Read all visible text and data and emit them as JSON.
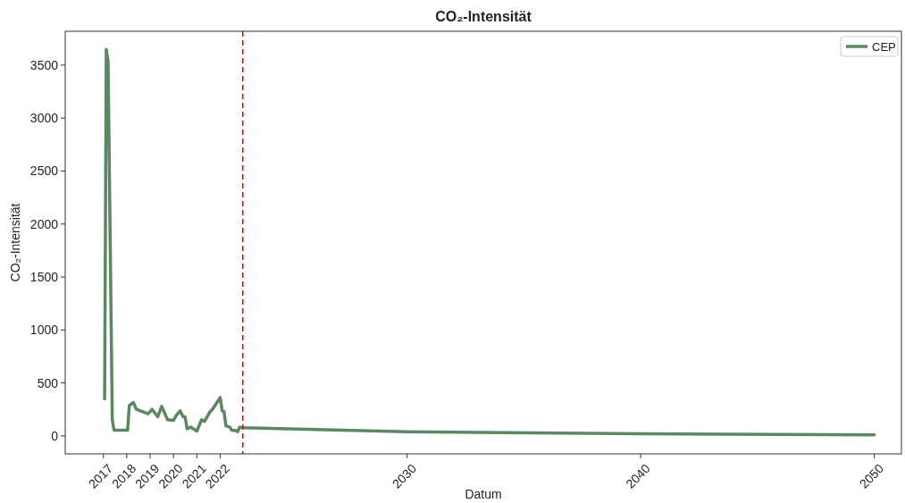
{
  "chart_data": {
    "type": "line",
    "title": "CO₂-Intensität",
    "xlabel": "Datum",
    "ylabel": "CO₂-Intensität",
    "xlim": [
      "2015-05-15",
      "2051-03-01"
    ],
    "xticks": [
      {
        "value": "2017",
        "label": "2017"
      },
      {
        "value": "2018",
        "label": "2018"
      },
      {
        "value": "2019",
        "label": "2019"
      },
      {
        "value": "2020",
        "label": "2020"
      },
      {
        "value": "2021",
        "label": "2021"
      },
      {
        "value": "2022",
        "label": "2022"
      },
      {
        "value": "2030",
        "label": "2030"
      },
      {
        "value": "2040",
        "label": "2040"
      },
      {
        "value": "2050",
        "label": "2050"
      }
    ],
    "ylim": [
      -170,
      3820
    ],
    "yticks": [
      0,
      500,
      1000,
      1500,
      2000,
      2500,
      3000,
      3500
    ],
    "grid": false,
    "legend": "top right",
    "marker": "none",
    "line_style": "solid",
    "series": [
      {
        "name": "CEP",
        "color": "#5b8763",
        "x": [
          "2017-01-20",
          "2017-02-15",
          "2017-03-15",
          "2017-05-20",
          "2017-06-15",
          "2018-01-15",
          "2018-02-10",
          "2018-04-15",
          "2018-06-01",
          "2018-12-01",
          "2019-02-01",
          "2019-05-01",
          "2019-07-01",
          "2019-10-01",
          "2020-01-01",
          "2020-02-15",
          "2020-04-15",
          "2020-06-01",
          "2020-07-01",
          "2020-08-01",
          "2020-10-01",
          "2021-01-01",
          "2021-03-15",
          "2021-05-01",
          "2021-07-20",
          "2021-09-01",
          "2022-01-01",
          "2022-02-01",
          "2022-03-01",
          "2022-04-01",
          "2022-06-01",
          "2022-07-01",
          "2022-09-15",
          "2022-10-01",
          "2022-11-01",
          "2023-01-01",
          "2030-01-01",
          "2040-01-01",
          "2050-01-01"
        ],
        "values": [
          348,
          3650,
          3538,
          152,
          53,
          53,
          287,
          315,
          250,
          208,
          250,
          180,
          278,
          152,
          146,
          194,
          236,
          180,
          180,
          67,
          82,
          45,
          152,
          137,
          222,
          250,
          362,
          236,
          230,
          95,
          82,
          53,
          49,
          40,
          82,
          76,
          38,
          20,
          10
        ]
      }
    ],
    "ref_lines": [
      {
        "axis": "x",
        "value": "2022-12-20",
        "color": "#ff0000",
        "line_style": "dashed"
      }
    ]
  }
}
